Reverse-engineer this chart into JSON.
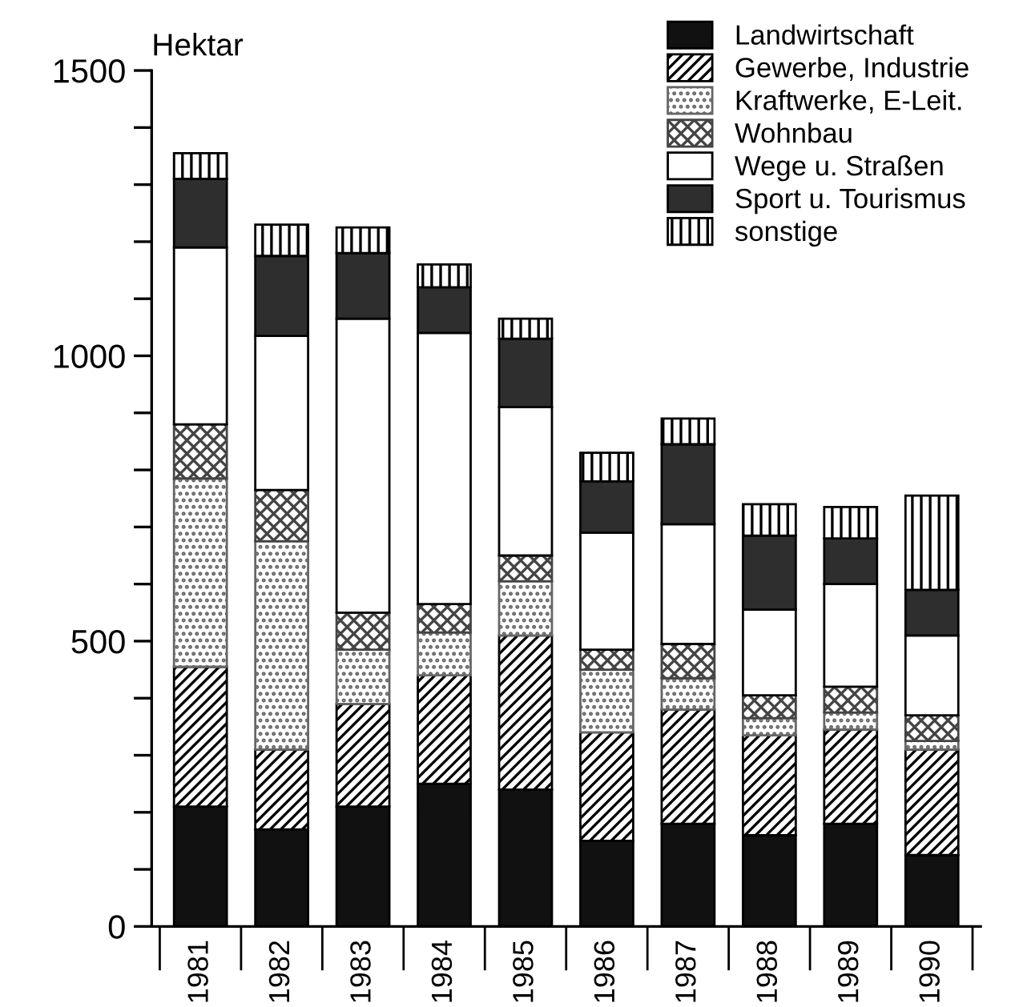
{
  "chart_data": {
    "type": "bar",
    "stacked": true,
    "ylabel": "Hektar",
    "categories": [
      "1981",
      "1982",
      "1983",
      "1984",
      "1985",
      "1986",
      "1987",
      "1988",
      "1989",
      "1990"
    ],
    "series": [
      {
        "name": "Landwirtschaft",
        "color": "#111111",
        "values": [
          210,
          170,
          210,
          250,
          240,
          150,
          180,
          160,
          180,
          125
        ]
      },
      {
        "name": "Gewerbe, Industrie",
        "color": "#000000",
        "values": [
          245,
          140,
          180,
          190,
          270,
          190,
          200,
          175,
          165,
          185
        ]
      },
      {
        "name": "Kraftwerke, E-Leit.",
        "color": "#666666",
        "values": [
          330,
          365,
          95,
          75,
          95,
          110,
          55,
          30,
          30,
          15
        ]
      },
      {
        "name": "Wohnbau",
        "color": "#444444",
        "values": [
          95,
          90,
          65,
          50,
          45,
          35,
          60,
          40,
          45,
          45
        ]
      },
      {
        "name": "Wege u. Straßen",
        "color": "#ffffff",
        "values": [
          310,
          270,
          515,
          475,
          260,
          205,
          210,
          150,
          180,
          140
        ]
      },
      {
        "name": "Sport u. Tourismus",
        "color": "#2e2e2e",
        "values": [
          120,
          140,
          115,
          80,
          120,
          90,
          140,
          130,
          80,
          80
        ]
      },
      {
        "name": "sonstige",
        "color": "#000000",
        "values": [
          45,
          55,
          45,
          40,
          35,
          50,
          45,
          55,
          55,
          165
        ]
      }
    ],
    "ylim": [
      0,
      1500
    ],
    "yticks": [
      0,
      {
        "value": 100,
        "label": null
      },
      {
        "value": 200,
        "label": null
      },
      {
        "value": 300,
        "label": null
      },
      {
        "value": 400,
        "label": null
      },
      500,
      {
        "value": 600,
        "label": null
      },
      {
        "value": 700,
        "label": null
      },
      {
        "value": 800,
        "label": null
      },
      {
        "value": 900,
        "label": null
      },
      1000,
      {
        "value": 1100,
        "label": null
      },
      {
        "value": 1200,
        "label": null
      },
      {
        "value": 1300,
        "label": null
      },
      {
        "value": 1400,
        "label": null
      },
      1500
    ],
    "grid": false,
    "legend": "top right"
  }
}
